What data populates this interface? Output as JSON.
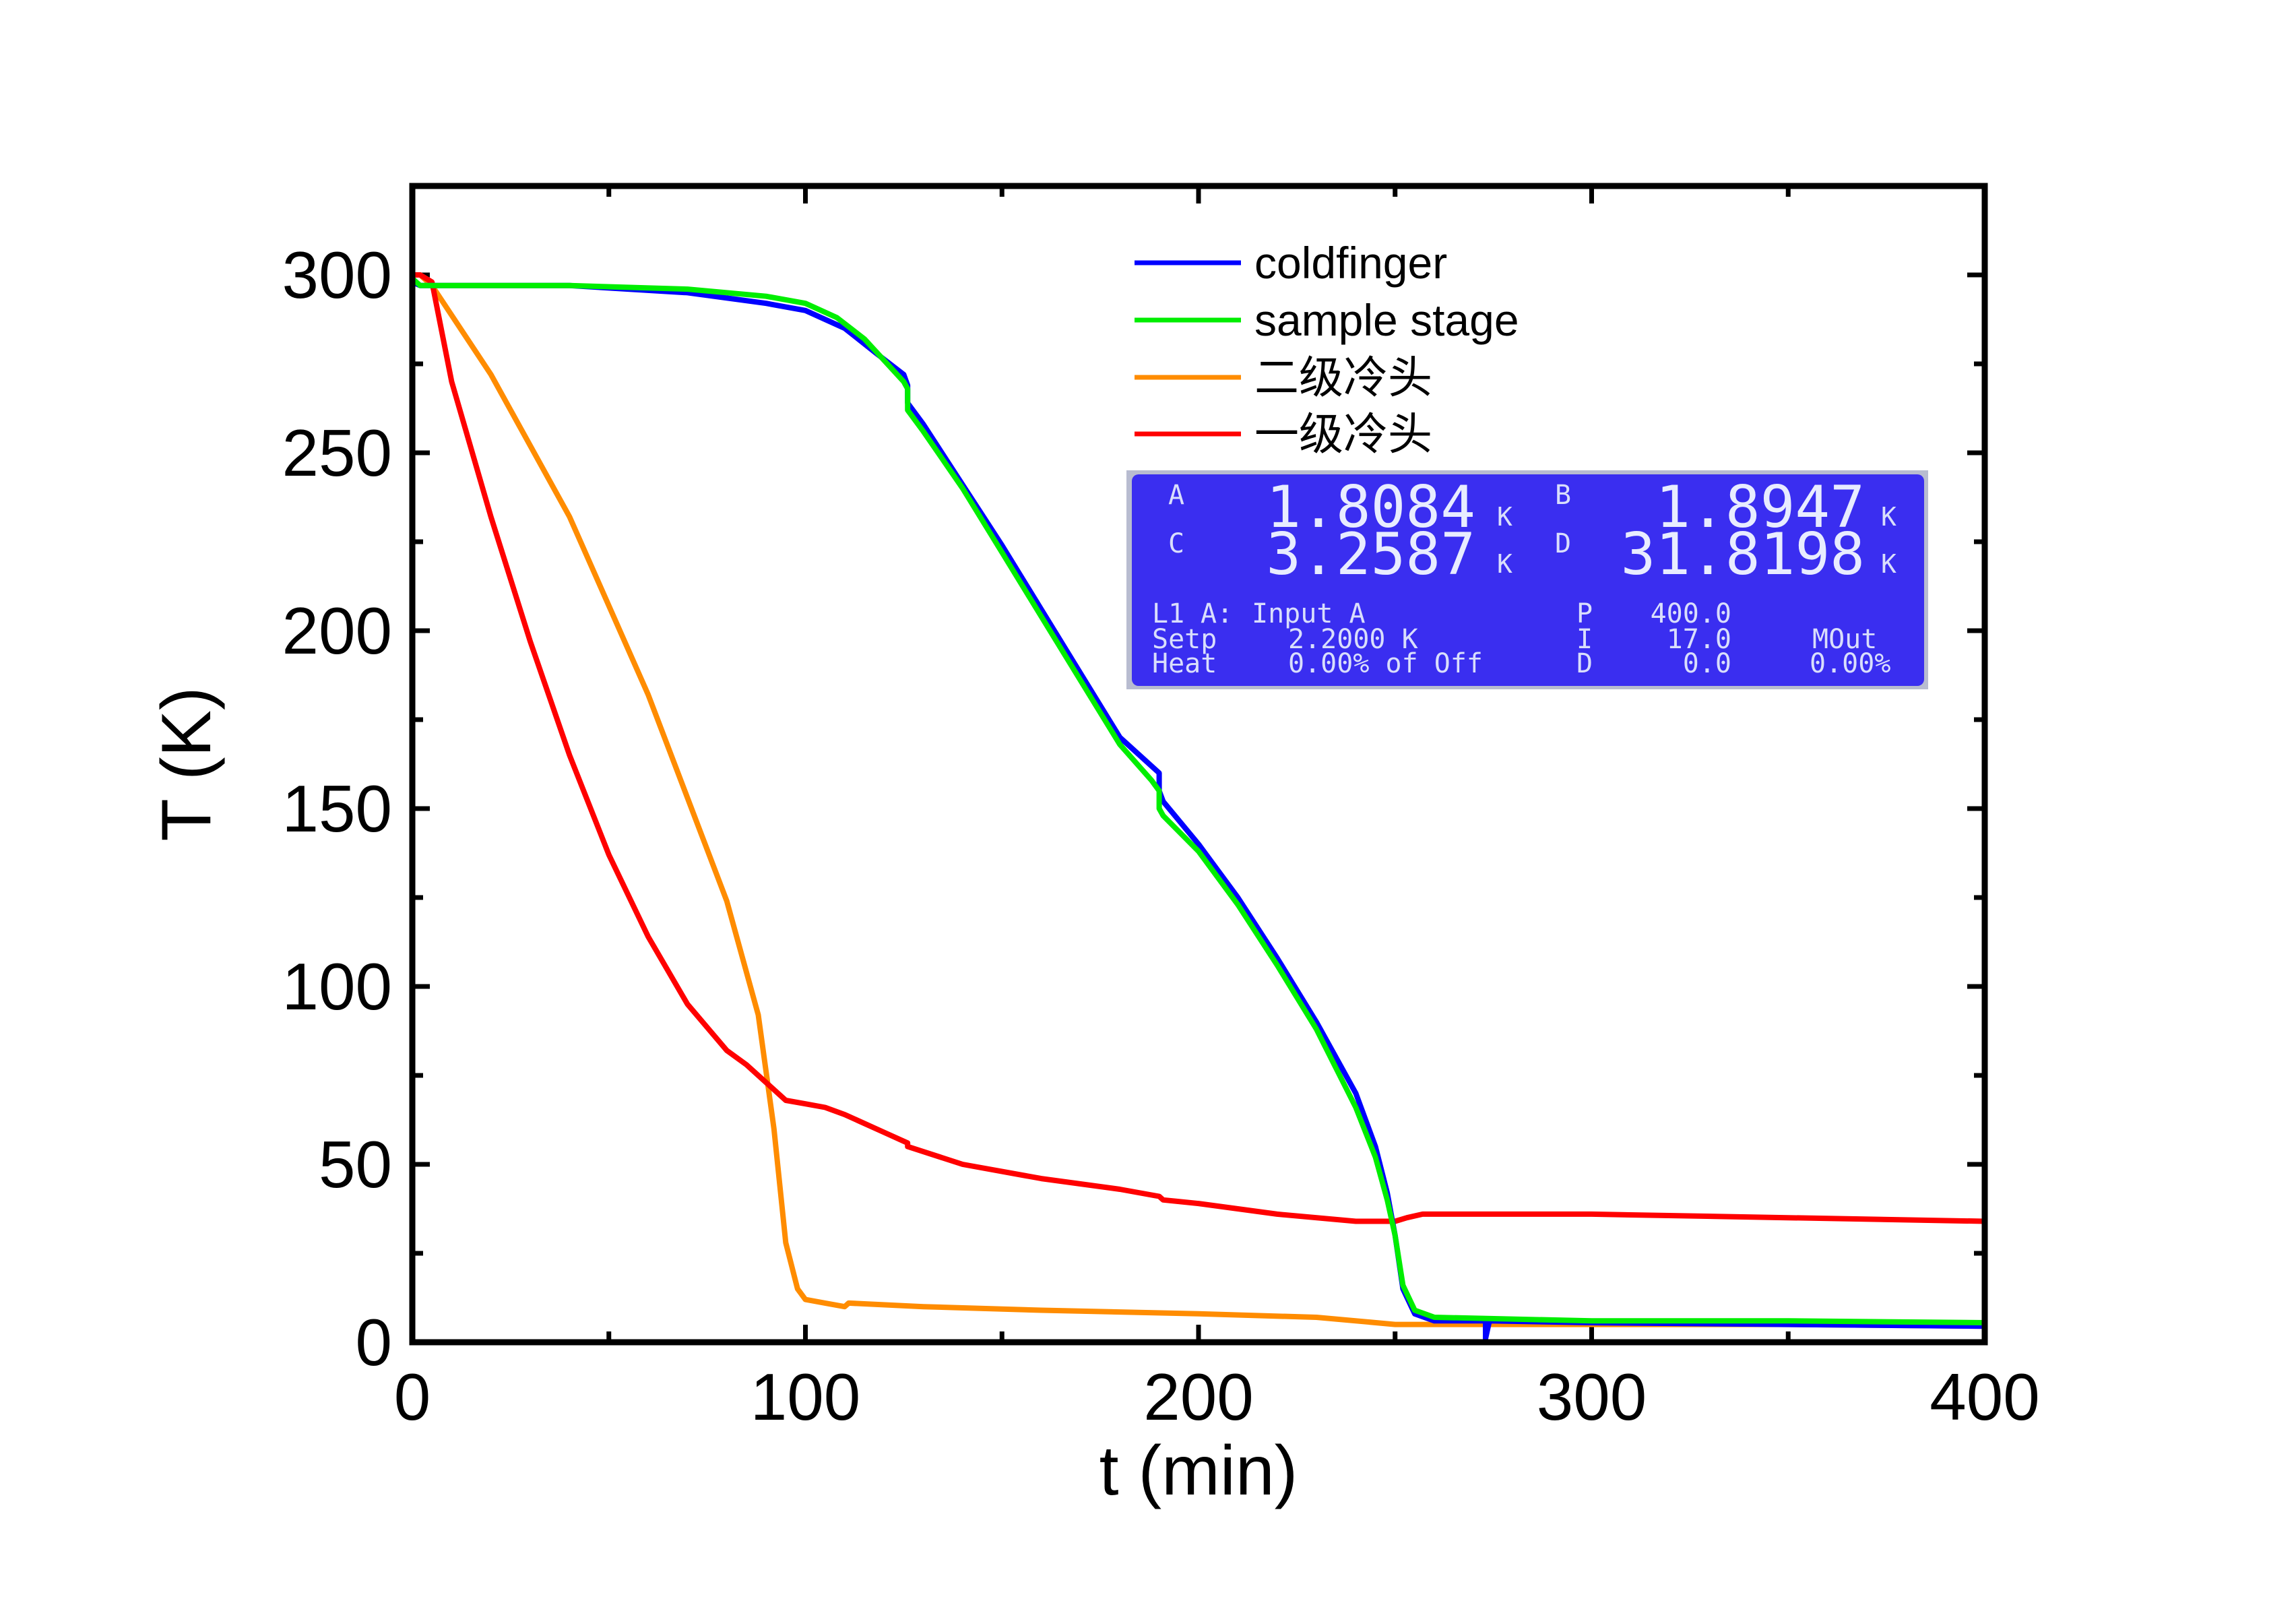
{
  "chart_data": {
    "type": "line",
    "xlabel": "t (min)",
    "ylabel": "T (K)",
    "xlim": [
      0,
      400
    ],
    "ylim": [
      0,
      325
    ],
    "xticks": [
      0,
      100,
      200,
      300,
      400
    ],
    "xtick_labels": [
      "0",
      "100",
      "200",
      "300",
      "400"
    ],
    "yticks": [
      0,
      50,
      100,
      150,
      200,
      250,
      300
    ],
    "ytick_labels": [
      "0",
      "50",
      "100",
      "150",
      "200",
      "250",
      "300"
    ],
    "grid": false,
    "legend_position": "top-right",
    "series": [
      {
        "name": "coldfinger",
        "color": "#0000ff",
        "x": [
          0,
          2,
          10,
          40,
          70,
          90,
          100,
          110,
          118,
          125,
          126,
          126,
          130,
          140,
          150,
          160,
          170,
          180,
          190,
          190,
          191,
          200,
          210,
          220,
          230,
          240,
          245,
          248,
          250,
          252,
          255,
          260,
          270,
          273,
          273,
          274,
          300,
          350,
          400
        ],
        "y": [
          298,
          297,
          297,
          297,
          295,
          292,
          290,
          285,
          278,
          272,
          269,
          264,
          258,
          241,
          224,
          206,
          188,
          170,
          160,
          155,
          152,
          140,
          125,
          108,
          90,
          70,
          55,
          42,
          30,
          15,
          8,
          6,
          6,
          6,
          1,
          6,
          5.5,
          5,
          4.5
        ]
      },
      {
        "name": "sample stage",
        "color": "#00ee00",
        "x": [
          0,
          2,
          10,
          40,
          70,
          90,
          100,
          108,
          115,
          120,
          125,
          126,
          126,
          130,
          140,
          150,
          160,
          170,
          180,
          188,
          190,
          190,
          191,
          200,
          210,
          220,
          230,
          240,
          245,
          248,
          250,
          252,
          255,
          260,
          300,
          350,
          400
        ],
        "y": [
          299,
          297,
          297,
          297,
          296,
          294,
          292,
          288,
          282,
          276,
          270,
          268,
          262,
          256,
          240,
          222,
          204,
          186,
          168,
          158,
          155,
          150,
          148,
          138,
          123,
          106,
          88,
          66,
          52,
          40,
          30,
          16,
          9,
          7,
          6,
          6,
          5.5
        ]
      },
      {
        "name": "二级冷头",
        "color": "#ff8c00",
        "x": [
          0,
          2,
          5,
          20,
          40,
          60,
          80,
          88,
          92,
          95,
          98,
          100,
          105,
          110,
          111,
          130,
          160,
          200,
          230,
          250,
          260,
          300,
          350,
          400
        ],
        "y": [
          300,
          300,
          297,
          272,
          232,
          182,
          124,
          92,
          60,
          28,
          15,
          12,
          11,
          10,
          11,
          10,
          9,
          8,
          7,
          5,
          5,
          5,
          5,
          4.5
        ]
      },
      {
        "name": "一级冷头",
        "color": "#ff0000",
        "x": [
          0,
          2,
          5,
          10,
          20,
          30,
          40,
          50,
          60,
          70,
          80,
          85,
          90,
          95,
          100,
          105,
          110,
          120,
          126,
          126,
          140,
          160,
          180,
          190,
          191,
          200,
          220,
          240,
          248,
          250,
          253,
          257,
          260,
          300,
          350,
          400
        ],
        "y": [
          300,
          300,
          298,
          270,
          232,
          197,
          165,
          137,
          114,
          95,
          82,
          78,
          73,
          68,
          67,
          66,
          64,
          59,
          56,
          55,
          50,
          46,
          43,
          41,
          40,
          39,
          36,
          34,
          34,
          34,
          35,
          36,
          36,
          36,
          35,
          34
        ]
      }
    ]
  },
  "legend": {
    "items": [
      {
        "label": "coldfinger",
        "color": "#0000ff"
      },
      {
        "label": "sample stage",
        "color": "#00ee00"
      },
      {
        "label": "二级冷头",
        "color": "#ff8c00"
      },
      {
        "label": "一级冷头",
        "color": "#ff0000"
      }
    ]
  },
  "lcd_display": {
    "background": "#3a2ef0",
    "channels": [
      {
        "letter": "A",
        "value": "1.8084",
        "unit": "K"
      },
      {
        "letter": "B",
        "value": "1.8947",
        "unit": "K"
      },
      {
        "letter": "C",
        "value": "3.2587",
        "unit": "K"
      },
      {
        "letter": "D",
        "value": "31.8198",
        "unit": "K"
      }
    ],
    "status": {
      "loop": "L1",
      "loop_suffix": "A:",
      "input": "Input A",
      "setp_label": "Setp",
      "setp_value": "2.2000 K",
      "heat_label": "Heat",
      "heat_value": "0.00% of Off",
      "p_label": "P",
      "p_value": "400.0",
      "i_label": "I",
      "i_value": "17.0",
      "d_label": "D",
      "d_value": "0.0",
      "mout_label": "MOut",
      "mout_value": "0.00%"
    }
  }
}
